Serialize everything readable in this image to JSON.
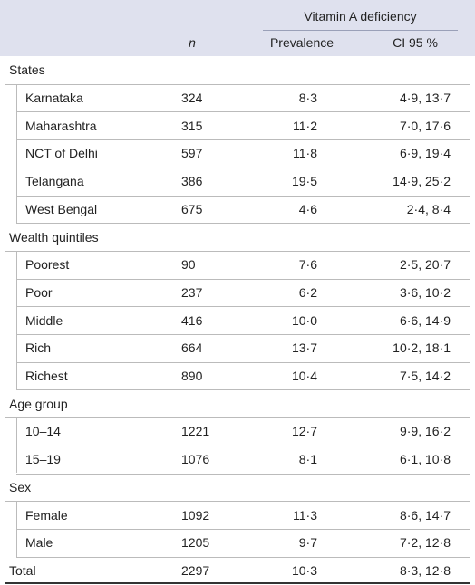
{
  "header": {
    "group_label": "Vitamin A deficiency",
    "n": "n",
    "prevalence": "Prevalence",
    "ci": "CI 95 %"
  },
  "groups": [
    {
      "label": "States",
      "rows": [
        [
          "Karnataka",
          "324",
          "8·3",
          "4·9, 13·7"
        ],
        [
          "Maharashtra",
          "315",
          "11·2",
          "7·0, 17·6"
        ],
        [
          "NCT of Delhi",
          "597",
          "11·8",
          "6·9, 19·4"
        ],
        [
          "Telangana",
          "386",
          "19·5",
          "14·9, 25·2"
        ],
        [
          "West Bengal",
          "675",
          "4·6",
          "2·4, 8·4"
        ]
      ]
    },
    {
      "label": "Wealth quintiles",
      "rows": [
        [
          "Poorest",
          "90",
          "7·6",
          "2·5, 20·7"
        ],
        [
          "Poor",
          "237",
          "6·2",
          "3·6, 10·2"
        ],
        [
          "Middle",
          "416",
          "10·0",
          "6·6, 14·9"
        ],
        [
          "Rich",
          "664",
          "13·7",
          "10·2, 18·1"
        ],
        [
          "Richest",
          "890",
          "10·4",
          "7·5, 14·2"
        ]
      ]
    },
    {
      "label": "Age group",
      "rows": [
        [
          "10–14",
          "1221",
          "12·7",
          "9·9, 16·2"
        ],
        [
          "15–19",
          "1076",
          "8·1",
          "6·1, 10·8"
        ]
      ]
    },
    {
      "label": "Sex",
      "rows": [
        [
          "Female",
          "1092",
          "11·3",
          "8·6, 14·7"
        ],
        [
          "Male",
          "1205",
          "9·7",
          "7·2, 12·8"
        ]
      ]
    }
  ],
  "total": [
    "Total",
    "2297",
    "10·3",
    "8·3, 12·8"
  ]
}
